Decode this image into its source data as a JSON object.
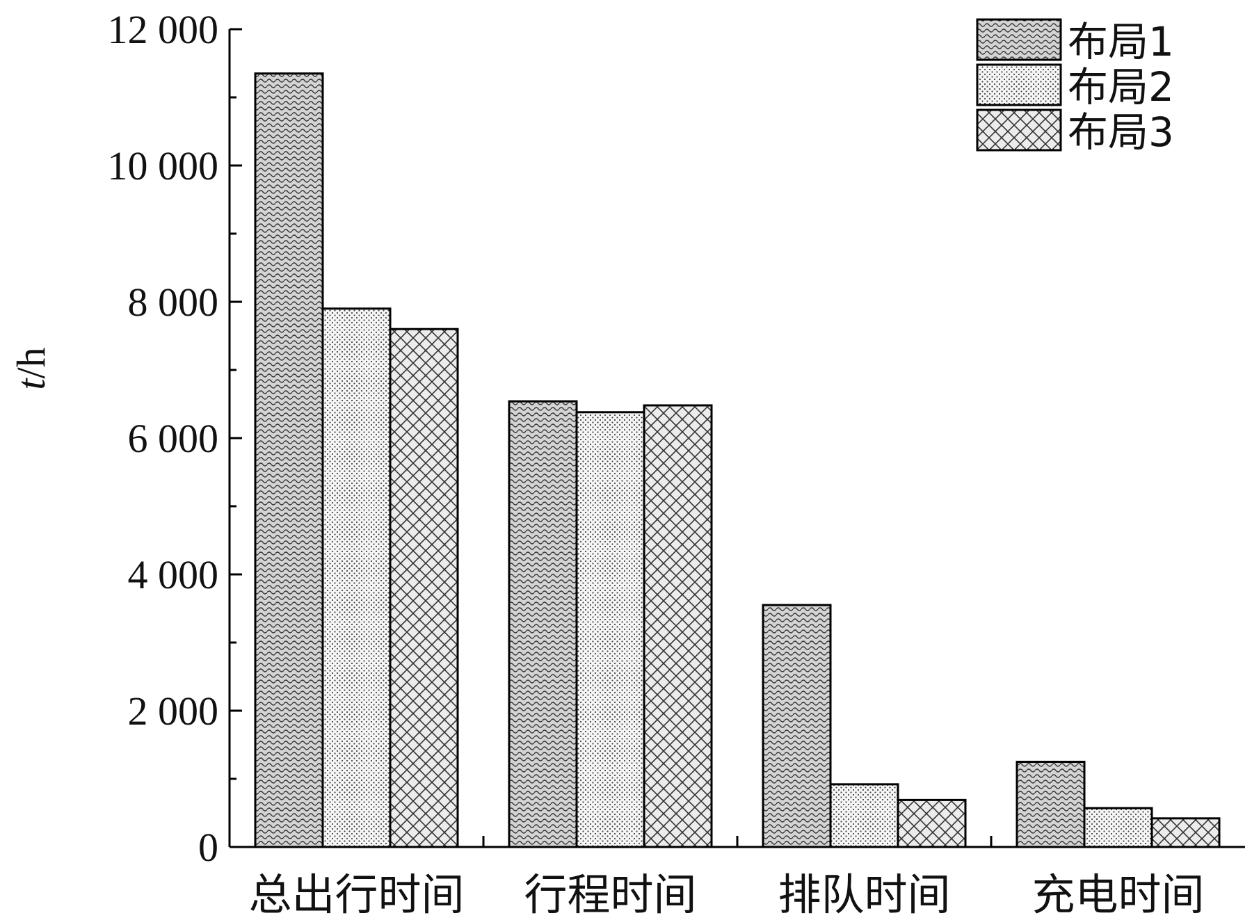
{
  "chart_data": {
    "type": "bar",
    "title": "",
    "xlabel": "",
    "ylabel": "t/h",
    "ylabel_parts": {
      "italic": "t",
      "rest": "/h"
    },
    "ylim": [
      0,
      12000
    ],
    "yticks": [
      0,
      2000,
      4000,
      6000,
      8000,
      10000,
      12000
    ],
    "ytick_labels": [
      "0",
      "2 000",
      "4 000",
      "6 000",
      "8 000",
      "10 000",
      "12 000"
    ],
    "categories": [
      "总出行时间",
      "行程时间",
      "排队时间",
      "充电时间"
    ],
    "series": [
      {
        "name": "布局1",
        "values": [
          11350,
          6540,
          3550,
          1250
        ],
        "pattern": "wave"
      },
      {
        "name": "布局2",
        "values": [
          7900,
          6380,
          920,
          570
        ],
        "pattern": "dots"
      },
      {
        "name": "布局3",
        "values": [
          7600,
          6480,
          690,
          420
        ],
        "pattern": "crosshatch"
      }
    ],
    "legend_position": "top-right",
    "grid": false
  }
}
